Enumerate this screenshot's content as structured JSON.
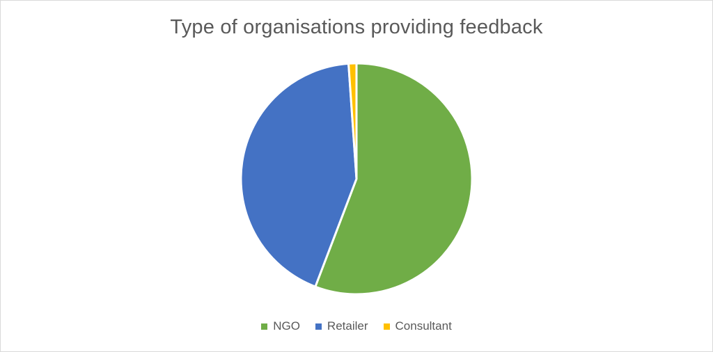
{
  "chart_data": {
    "type": "pie",
    "title": "Type of organisations providing feedback",
    "legend_position": "bottom",
    "categories": [
      "NGO",
      "Retailer",
      "Consultant"
    ],
    "values": [
      55.8,
      43.1,
      1.1
    ],
    "colors": [
      "#70ad47",
      "#4472c4",
      "#ffc000"
    ],
    "start_angle_deg": 0,
    "direction": "clockwise"
  }
}
